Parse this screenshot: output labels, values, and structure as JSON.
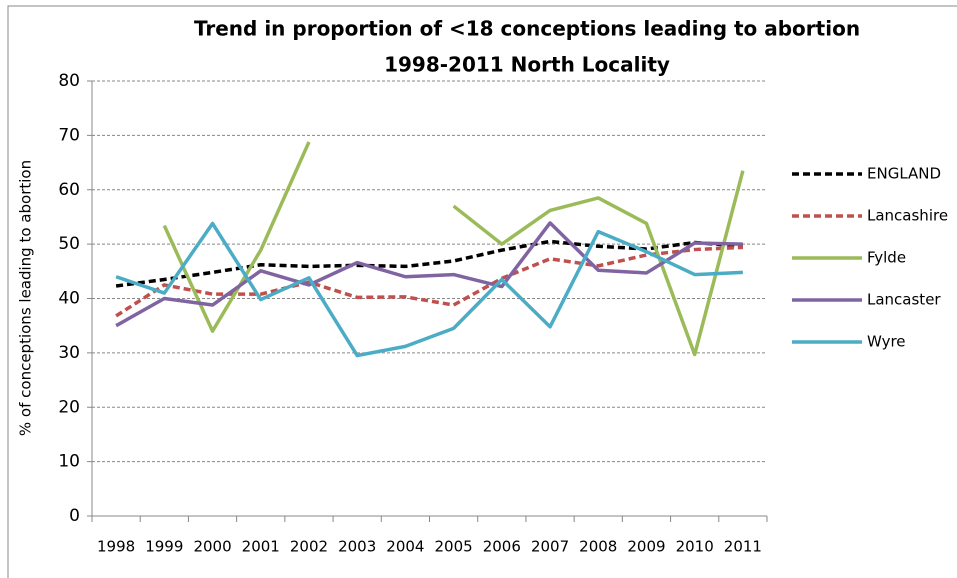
{
  "chart_data": {
    "type": "line",
    "title": [
      "Trend in proportion of <18 conceptions leading to abortion",
      "1998-2011 North Locality"
    ],
    "y_label": "% of conceptions leading to abortion",
    "categories": [
      "1998",
      "1999",
      "2000",
      "2001",
      "2002",
      "2003",
      "2004",
      "2005",
      "2006",
      "2007",
      "2008",
      "2009",
      "2010",
      "2011"
    ],
    "ylim": [
      0,
      80
    ],
    "yticks": [
      0,
      10,
      20,
      30,
      40,
      50,
      60,
      70,
      80
    ],
    "grid": true,
    "legend": "right",
    "series": [
      {
        "name": "ENGLAND",
        "color": "#000000",
        "dashed": true,
        "values": [
          42.3,
          43.5,
          44.8,
          46.2,
          45.9,
          46.1,
          45.9,
          46.9,
          48.9,
          50.5,
          49.6,
          49.1,
          50.3,
          49.6
        ]
      },
      {
        "name": "Lancashire",
        "color": "#c0504d",
        "dashed": true,
        "values": [
          36.8,
          42.5,
          40.8,
          40.8,
          43.0,
          40.2,
          40.3,
          38.8,
          43.7,
          47.3,
          46.0,
          48.0,
          49.0,
          49.4
        ]
      },
      {
        "name": "Fylde",
        "color": "#9bbb59",
        "dashed": false,
        "values": [
          null,
          53.4,
          34.0,
          48.9,
          68.8,
          null,
          null,
          57.0,
          50.0,
          56.2,
          58.5,
          53.8,
          29.7,
          63.5
        ]
      },
      {
        "name": "Lancaster",
        "color": "#8064a2",
        "dashed": false,
        "values": [
          35.0,
          40.0,
          38.8,
          45.1,
          42.5,
          46.6,
          44.0,
          44.4,
          42.2,
          53.9,
          45.2,
          44.7,
          50.2,
          50.0
        ]
      },
      {
        "name": "Wyre",
        "color": "#4bacc6",
        "dashed": false,
        "values": [
          44.0,
          41.0,
          53.8,
          39.8,
          43.8,
          29.5,
          31.2,
          34.5,
          43.5,
          34.8,
          52.3,
          48.6,
          44.4,
          44.8
        ]
      }
    ]
  }
}
